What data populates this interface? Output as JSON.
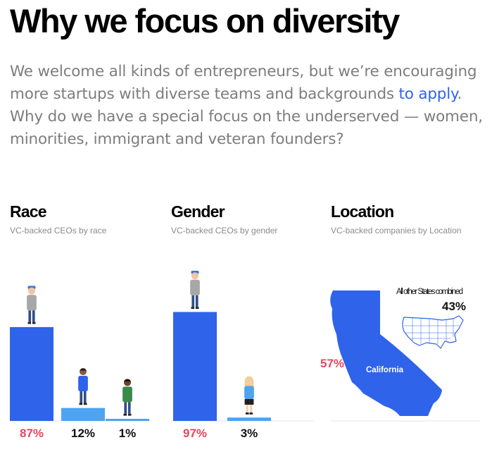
{
  "header": {
    "title": "Why we focus on diversity",
    "intro_before": "We welcome all kinds of entrepreneurs, but we’re encouraging more startups with diverse teams and backgrounds ",
    "intro_link": "to apply",
    "intro_after": ". Why do we have a special focus on the underserved — women, minorities, immigrant and veteran founders?"
  },
  "colors": {
    "bar_primary": "#2f63ea",
    "bar_secondary": "#4ea3f2",
    "highlight_pct": "#e4475f",
    "link": "#2f63ea"
  },
  "chart_data": [
    {
      "type": "bar",
      "title": "Race",
      "subtitle": "VC-backed CEOs by race",
      "categories": [
        "",
        "",
        ""
      ],
      "values": [
        87,
        12,
        1
      ],
      "labels": [
        "87%",
        "12%",
        "1%"
      ],
      "ylim": [
        0,
        100
      ]
    },
    {
      "type": "bar",
      "title": "Gender",
      "subtitle": "VC-backed CEOs by gender",
      "categories": [
        "",
        ""
      ],
      "values": [
        97,
        3
      ],
      "labels": [
        "97%",
        "3%"
      ],
      "ylim": [
        0,
        100
      ]
    },
    {
      "type": "map",
      "title": "Location",
      "subtitle": "VC-backed companies by Location",
      "regions": [
        {
          "name": "California",
          "value": 57,
          "label": "57%"
        },
        {
          "name": "All other States combined",
          "value": 43,
          "label": "43%"
        }
      ]
    }
  ]
}
